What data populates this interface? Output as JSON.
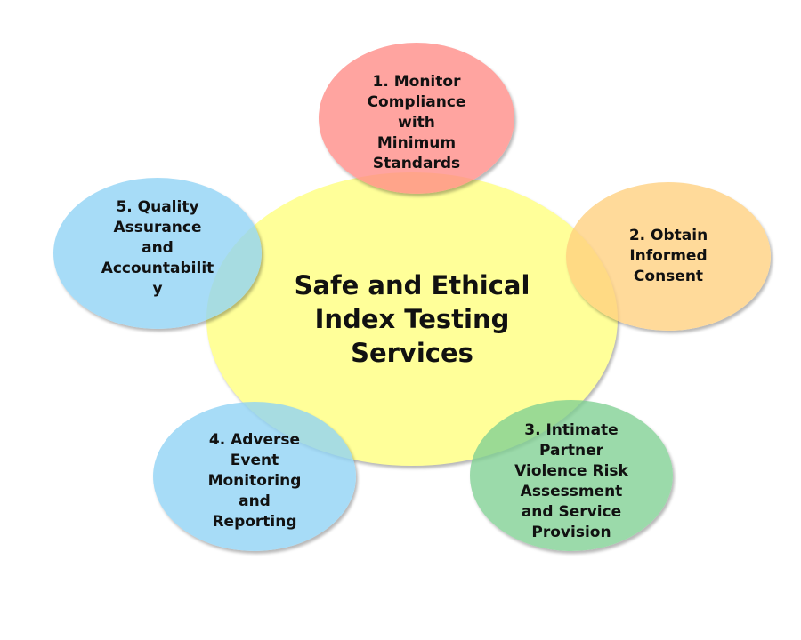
{
  "diagram": {
    "center": {
      "label": "Safe and Ethical\nIndex Testing\nServices",
      "color": "#ffff99"
    },
    "nodes": [
      {
        "label": "1. Monitor\nCompliance\nwith\nMinimum\nStandards",
        "color": "#ff8a85"
      },
      {
        "label": "2. Obtain\nInformed\nConsent",
        "color": "#ffd07e"
      },
      {
        "label": "3. Intimate\nPartner\nViolence Risk\nAssessment\nand Service\nProvision",
        "color": "#7fd092"
      },
      {
        "label": "4. Adverse\nEvent\nMonitoring\nand\nReporting",
        "color": "#8ed2f5"
      },
      {
        "label": "5. Quality\nAssurance\nand\nAccountabilit\ny",
        "color": "#8ed2f5"
      }
    ]
  }
}
